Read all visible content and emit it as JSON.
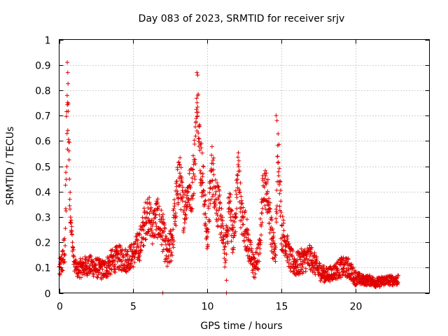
{
  "chart_data": {
    "type": "scatter",
    "title": "Day 083 of 2023, SRMTID for receiver srjv",
    "xlabel": "GPS time / hours",
    "ylabel": "SRMTID / TECUs",
    "xlim": [
      0,
      25
    ],
    "ylim": [
      0,
      1
    ],
    "x_ticks": [
      "0",
      "5",
      "10",
      "15",
      "20"
    ],
    "y_ticks": [
      "0",
      "0.1",
      "0.2",
      "0.3",
      "0.4",
      "0.5",
      "0.6",
      "0.7",
      "0.8",
      "0.9",
      "1"
    ],
    "grid": true,
    "marker": "+",
    "color": "#e00000",
    "series": [
      {
        "name": "SRMTID",
        "envelope": {
          "x": [
            0.0,
            0.2,
            0.4,
            0.5,
            0.6,
            0.7,
            0.8,
            1.0,
            1.2,
            1.5,
            2.0,
            2.5,
            3.0,
            3.5,
            4.0,
            4.5,
            5.0,
            5.5,
            5.8,
            6.0,
            6.3,
            6.6,
            7.0,
            7.3,
            7.6,
            7.9,
            8.1,
            8.4,
            8.7,
            9.0,
            9.2,
            9.35,
            9.5,
            9.7,
            10.0,
            10.3,
            10.6,
            10.9,
            11.2,
            11.5,
            11.8,
            12.1,
            12.3,
            12.6,
            12.9,
            13.2,
            13.5,
            13.8,
            14.1,
            14.4,
            14.6,
            14.8,
            15.0,
            15.3,
            15.6,
            16.0,
            16.5,
            17.0,
            17.5,
            18.0,
            18.5,
            19.0,
            19.5,
            20.0,
            20.5,
            21.0,
            21.5,
            22.0,
            22.5,
            22.9
          ],
          "y": [
            0.09,
            0.12,
            0.18,
            0.55,
            0.78,
            0.45,
            0.27,
            0.12,
            0.09,
            0.1,
            0.11,
            0.1,
            0.09,
            0.12,
            0.14,
            0.13,
            0.15,
            0.2,
            0.28,
            0.32,
            0.26,
            0.3,
            0.24,
            0.14,
            0.2,
            0.35,
            0.48,
            0.32,
            0.4,
            0.42,
            0.58,
            0.8,
            0.55,
            0.45,
            0.2,
            0.5,
            0.38,
            0.3,
            0.15,
            0.35,
            0.2,
            0.5,
            0.3,
            0.25,
            0.15,
            0.1,
            0.15,
            0.44,
            0.38,
            0.2,
            0.15,
            0.6,
            0.25,
            0.2,
            0.13,
            0.11,
            0.13,
            0.14,
            0.09,
            0.07,
            0.08,
            0.1,
            0.1,
            0.06,
            0.05,
            0.05,
            0.04,
            0.05,
            0.05,
            0.05
          ],
          "noise": [
            0.04,
            0.05,
            0.08,
            0.25,
            0.12,
            0.1,
            0.05,
            0.03,
            0.03,
            0.04,
            0.04,
            0.04,
            0.04,
            0.05,
            0.05,
            0.05,
            0.05,
            0.07,
            0.08,
            0.08,
            0.07,
            0.08,
            0.08,
            0.06,
            0.08,
            0.1,
            0.1,
            0.08,
            0.08,
            0.1,
            0.12,
            0.08,
            0.12,
            0.1,
            0.06,
            0.1,
            0.1,
            0.08,
            0.06,
            0.1,
            0.08,
            0.1,
            0.08,
            0.08,
            0.06,
            0.05,
            0.06,
            0.08,
            0.08,
            0.07,
            0.06,
            0.12,
            0.08,
            0.06,
            0.05,
            0.05,
            0.05,
            0.05,
            0.04,
            0.03,
            0.03,
            0.04,
            0.04,
            0.03,
            0.02,
            0.02,
            0.02,
            0.02,
            0.02,
            0.02
          ]
        },
        "outliers": [
          {
            "x": 0.55,
            "y": 0.91
          },
          {
            "x": 0.58,
            "y": 0.87
          },
          {
            "x": 9.3,
            "y": 0.87
          },
          {
            "x": 9.35,
            "y": 0.86
          },
          {
            "x": 14.65,
            "y": 0.7
          },
          {
            "x": 14.7,
            "y": 0.68
          },
          {
            "x": 7.0,
            "y": 0.0
          },
          {
            "x": 11.3,
            "y": 0.0
          },
          {
            "x": 11.3,
            "y": 0.05
          }
        ]
      }
    ]
  }
}
